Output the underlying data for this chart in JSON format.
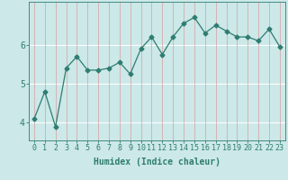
{
  "x": [
    0,
    1,
    2,
    3,
    4,
    5,
    6,
    7,
    8,
    9,
    10,
    11,
    12,
    13,
    14,
    15,
    16,
    17,
    18,
    19,
    20,
    21,
    22,
    23
  ],
  "y": [
    4.1,
    4.8,
    3.9,
    5.4,
    5.7,
    5.35,
    5.35,
    5.4,
    5.55,
    5.25,
    5.9,
    6.2,
    5.75,
    6.2,
    6.55,
    6.7,
    6.3,
    6.5,
    6.35,
    6.2,
    6.2,
    6.1,
    6.4,
    5.95
  ],
  "line_color": "#2e7d70",
  "marker": "D",
  "marker_size": 2.5,
  "bg_color": "#cce8e8",
  "grid_color_h": "#ffffff",
  "grid_color_v": "#d8a0a0",
  "axis_color": "#2e7d70",
  "xlabel": "Humidex (Indice chaleur)",
  "xlabel_fontsize": 7,
  "tick_fontsize": 6,
  "yticks": [
    4,
    5,
    6
  ],
  "xlim": [
    -0.5,
    23.5
  ],
  "ylim": [
    3.55,
    7.1
  ]
}
